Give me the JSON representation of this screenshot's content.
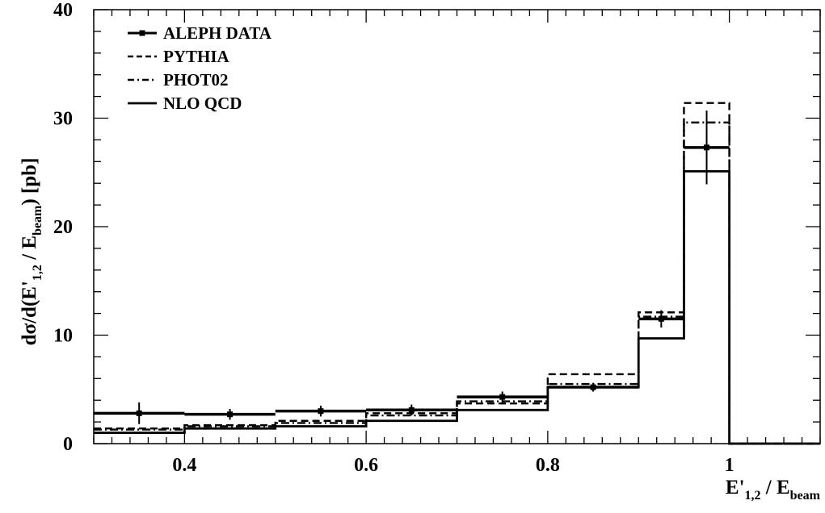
{
  "chart_data": {
    "type": "line",
    "xlabel": "E'_{1,2} / E_{beam}",
    "ylabel": "dσ/d(E'_{1,2} / E_{beam}) [pb]",
    "xlabel_parts": {
      "main": "E'",
      "sub1": "1,2",
      "mid": " / E",
      "sub2": "beam"
    },
    "ylabel_parts": {
      "pre": "dσ/d(E'",
      "sub1": "1,2",
      "mid": " / E",
      "sub2": "beam",
      "post": ") [pb]"
    },
    "xlim": [
      0.3,
      1.1
    ],
    "ylim": [
      0,
      40
    ],
    "xticks": [
      "0.4",
      "0.6",
      "0.8",
      "1"
    ],
    "yticks": [
      "0",
      "10",
      "20",
      "30",
      "40"
    ],
    "legend_position": "top-left",
    "bin_edges": [
      0.3,
      0.4,
      0.5,
      0.6,
      0.7,
      0.8,
      0.9,
      0.95,
      1.0,
      1.1
    ],
    "series": [
      {
        "name": "ALEPH DATA",
        "style": "points",
        "x": [
          0.35,
          0.45,
          0.55,
          0.65,
          0.75,
          0.85,
          0.925,
          0.975
        ],
        "xerr": [
          0.05,
          0.05,
          0.05,
          0.05,
          0.05,
          0.05,
          0.025,
          0.025
        ],
        "values": [
          2.8,
          2.7,
          3.0,
          3.1,
          4.3,
          5.2,
          11.5,
          27.3
        ],
        "yerr": [
          1.0,
          0.5,
          0.5,
          0.5,
          0.5,
          0.4,
          0.8,
          3.4
        ]
      },
      {
        "name": "PYTHIA",
        "style": "dashed",
        "values": [
          1.4,
          1.7,
          2.1,
          2.8,
          3.7,
          6.4,
          12.1,
          31.4,
          0
        ]
      },
      {
        "name": "PHOT02",
        "style": "dashdot",
        "values": [
          1.3,
          1.6,
          1.9,
          2.6,
          3.9,
          5.5,
          11.7,
          29.6,
          0
        ]
      },
      {
        "name": "NLO QCD",
        "style": "solid",
        "values": [
          1.0,
          1.4,
          1.6,
          2.1,
          3.1,
          5.2,
          9.7,
          25.1,
          0
        ]
      }
    ]
  }
}
